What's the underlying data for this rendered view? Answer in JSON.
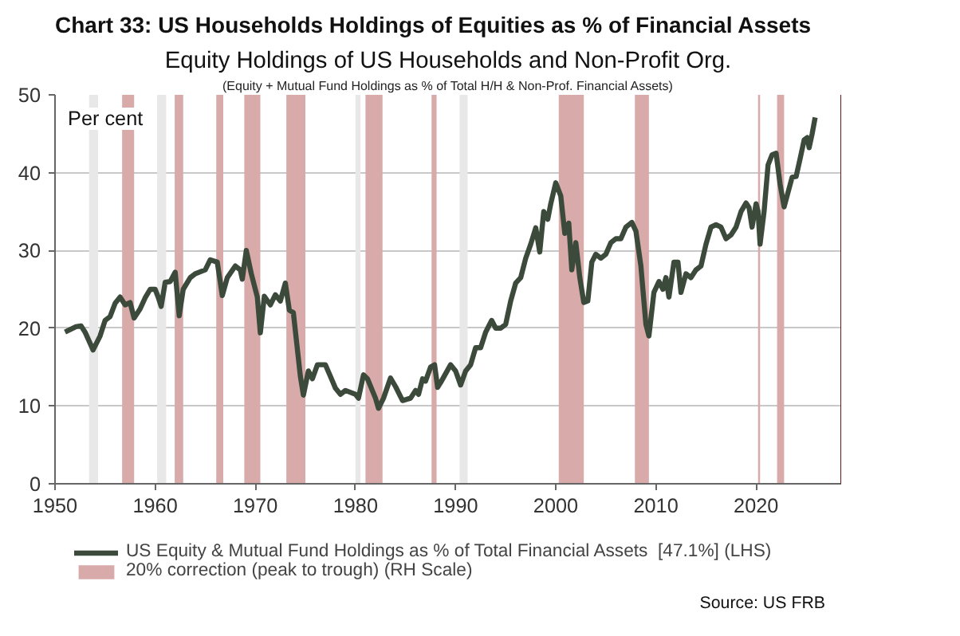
{
  "chart_data": {
    "type": "line",
    "title": "Chart 33: US Households Holdings of Equities as % of Financial Assets",
    "subtitle": "Equity Holdings of US Households and Non-Profit Org.",
    "ylabel": "Per cent",
    "annotations": [
      "(Equity + Mutual Fund Holdings as % of Total H/H & Non-Prof. Financial Assets)",
      "Source: US FRB"
    ],
    "series": [
      {
        "name": "US Equity & Mutual Fund Holdings as % of Total Financial Assets  [47.1%] (LHS)",
        "color": "#3b4a3b",
        "x": [
          1951.0,
          1952.1,
          1952.6,
          1953.0,
          1953.8,
          1954.5,
          1955.0,
          1955.5,
          1956.0,
          1956.5,
          1957.0,
          1957.5,
          1957.9,
          1958.5,
          1959.0,
          1959.5,
          1960.0,
          1960.3,
          1960.6,
          1961.0,
          1961.5,
          1962.0,
          1962.4,
          1962.8,
          1963.5,
          1964.0,
          1965.0,
          1965.5,
          1966.2,
          1966.7,
          1967.2,
          1968.0,
          1968.5,
          1968.7,
          1969.1,
          1969.6,
          1970.2,
          1970.5,
          1970.9,
          1971.5,
          1972.0,
          1972.5,
          1973.0,
          1973.4,
          1973.8,
          1974.5,
          1974.8,
          1975.3,
          1975.7,
          1976.2,
          1977.0,
          1977.5,
          1978.0,
          1978.5,
          1979.0,
          1980.0,
          1980.3,
          1980.8,
          1981.2,
          1982.0,
          1982.3,
          1982.8,
          1983.5,
          1984.0,
          1984.7,
          1985.5,
          1986.0,
          1986.3,
          1986.7,
          1987.0,
          1987.5,
          1987.9,
          1988.2,
          1988.5,
          1989.5,
          1990.0,
          1990.5,
          1991.0,
          1991.5,
          1992.0,
          1992.5,
          1993.0,
          1993.6,
          1994.0,
          1994.5,
          1995.0,
          1995.5,
          1996.0,
          1996.5,
          1997.0,
          1997.5,
          1998.0,
          1998.4,
          1998.8,
          1999.2,
          1999.5,
          2000.0,
          2000.5,
          2000.9,
          2001.3,
          2001.6,
          2002.0,
          2002.4,
          2002.8,
          2003.2,
          2003.6,
          2004.0,
          2004.5,
          2005.0,
          2005.5,
          2006.0,
          2006.5,
          2007.0,
          2007.6,
          2008.0,
          2008.5,
          2009.0,
          2009.3,
          2009.8,
          2010.3,
          2010.7,
          2011.0,
          2011.3,
          2011.8,
          2012.2,
          2012.5,
          2013.0,
          2013.5,
          2014.0,
          2014.5,
          2015.0,
          2015.5,
          2016.0,
          2016.5,
          2017.0,
          2017.5,
          2018.0,
          2018.5,
          2019.0,
          2019.3,
          2019.6,
          2020.0,
          2020.2,
          2020.4,
          2020.8,
          2021.2,
          2021.6,
          2022.0,
          2022.4,
          2022.8,
          2023.2,
          2023.6,
          2024.0,
          2024.4,
          2024.8,
          2025.1,
          2025.3,
          2025.6,
          2025.9
        ],
        "values": [
          19.5,
          20.2,
          20.3,
          19.5,
          17.2,
          19.0,
          21.0,
          21.5,
          23.2,
          24.0,
          23.0,
          23.3,
          21.3,
          22.5,
          23.9,
          25.0,
          25.0,
          24.0,
          22.8,
          25.9,
          26.0,
          27.2,
          21.6,
          25.0,
          26.5,
          27.0,
          27.5,
          28.8,
          28.5,
          24.2,
          26.5,
          28.0,
          27.5,
          26.3,
          30.0,
          27.0,
          24.0,
          19.4,
          24.1,
          23.0,
          24.3,
          23.5,
          25.8,
          22.3,
          22.0,
          13.8,
          11.4,
          14.5,
          13.5,
          15.3,
          15.3,
          13.8,
          12.3,
          11.5,
          12.0,
          11.5,
          11.0,
          14.0,
          13.5,
          11.0,
          9.7,
          11.0,
          13.6,
          12.5,
          10.7,
          11.0,
          12.0,
          11.5,
          13.5,
          13.2,
          15.0,
          15.3,
          12.4,
          13.0,
          15.3,
          14.5,
          12.7,
          14.5,
          15.3,
          17.5,
          17.5,
          19.5,
          21.0,
          20.0,
          20.0,
          20.5,
          23.5,
          25.8,
          26.5,
          29.0,
          30.8,
          32.9,
          29.8,
          35.0,
          34.0,
          36.0,
          38.7,
          37.0,
          32.2,
          33.5,
          27.5,
          31.0,
          26.5,
          23.3,
          23.5,
          28.5,
          29.5,
          29.0,
          29.5,
          31.0,
          31.5,
          31.5,
          33.0,
          33.6,
          32.5,
          28.0,
          20.5,
          19.0,
          24.6,
          26.0,
          25.0,
          26.5,
          24.0,
          28.5,
          28.5,
          24.6,
          27.0,
          26.5,
          27.5,
          28.0,
          30.8,
          33.0,
          33.3,
          33.0,
          31.5,
          32.0,
          33.0,
          35.0,
          36.1,
          35.5,
          33.0,
          36.0,
          35.0,
          30.8,
          35.0,
          41.0,
          42.3,
          42.5,
          38.5,
          35.6,
          37.5,
          39.4,
          39.5,
          41.8,
          44.2,
          44.5,
          43.2,
          45.0,
          47.1
        ]
      }
    ],
    "bands": [
      {
        "axis": "x",
        "from": 1953.4,
        "to": 1954.3,
        "color": "#e8e8e8"
      },
      {
        "axis": "x",
        "from": 1956.7,
        "to": 1957.9,
        "color": "#d8aaaa",
        "label": "20% correction (peak to trough) (RH Scale)"
      },
      {
        "axis": "x",
        "from": 1960.2,
        "to": 1961.1,
        "color": "#e8e8e8"
      },
      {
        "axis": "x",
        "from": 1961.95,
        "to": 1962.8,
        "color": "#d8aaaa"
      },
      {
        "axis": "x",
        "from": 1966.1,
        "to": 1966.8,
        "color": "#d8aaaa"
      },
      {
        "axis": "x",
        "from": 1968.9,
        "to": 1970.5,
        "color": "#d8aaaa"
      },
      {
        "axis": "x",
        "from": 1973.1,
        "to": 1975.0,
        "color": "#d8aaaa"
      },
      {
        "axis": "x",
        "from": 1980.0,
        "to": 1980.5,
        "color": "#e8e8e8"
      },
      {
        "axis": "x",
        "from": 1981.0,
        "to": 1982.7,
        "color": "#d8aaaa"
      },
      {
        "axis": "x",
        "from": 1987.6,
        "to": 1988.1,
        "color": "#d8aaaa"
      },
      {
        "axis": "x",
        "from": 1990.4,
        "to": 1991.2,
        "color": "#e8e8e8"
      },
      {
        "axis": "x",
        "from": 2000.3,
        "to": 2002.8,
        "color": "#d8aaaa"
      },
      {
        "axis": "x",
        "from": 2007.9,
        "to": 2009.3,
        "color": "#d8aaaa"
      },
      {
        "axis": "x",
        "from": 2020.2,
        "to": 2020.4,
        "color": "#d8aaaa"
      },
      {
        "axis": "x",
        "from": 2022.1,
        "to": 2022.8,
        "color": "#d8aaaa"
      }
    ],
    "xlim": [
      1950,
      2028.5
    ],
    "xticks": [
      1950,
      1960,
      1970,
      1980,
      1990,
      2000,
      2010,
      2020
    ],
    "ylim": [
      0,
      50
    ],
    "yticks": [
      0,
      10,
      20,
      30,
      40,
      50
    ],
    "grid": "y",
    "legend": "bottom",
    "line_style": "solid",
    "marker": "none"
  }
}
